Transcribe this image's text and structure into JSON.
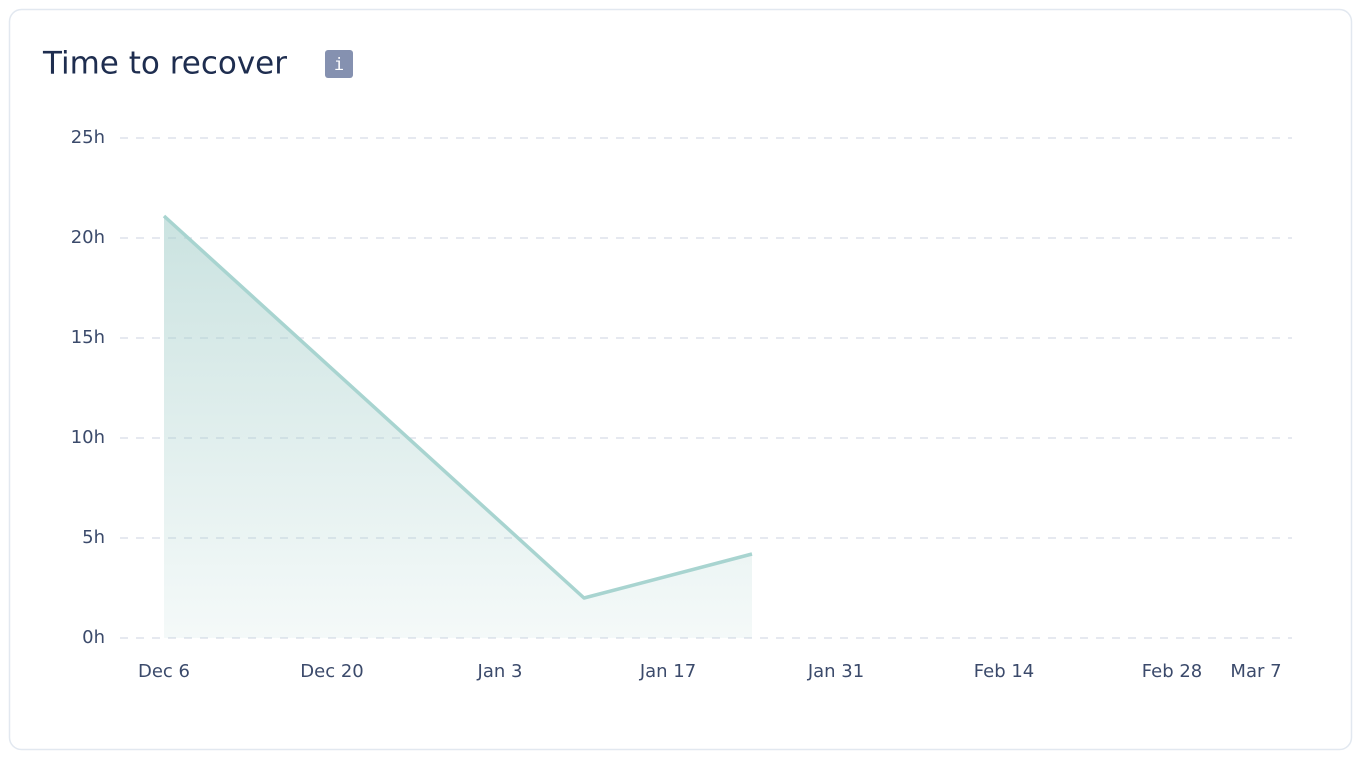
{
  "icon": "i",
  "chart_data": {
    "type": "area",
    "title": "Time to recover",
    "x": [
      "Dec 6",
      "Jan 10",
      "Jan 24"
    ],
    "values": [
      21.1,
      2,
      4.2
    ],
    "color": "#a8d4d0",
    "xlim": [
      "Dec 2",
      "Mar 10"
    ],
    "xticks": [
      "Dec 6",
      "Dec 20",
      "Jan 3",
      "Jan 17",
      "Jan 31",
      "Feb 14",
      "Feb 28",
      "Mar 7"
    ],
    "ylim": [
      0,
      25
    ],
    "yticks": [
      {
        "value": 0,
        "label": "0h"
      },
      {
        "value": 5,
        "label": "5h"
      },
      {
        "value": 10,
        "label": "10h"
      },
      {
        "value": 15,
        "label": "15h"
      },
      {
        "value": 20,
        "label": "20h"
      },
      {
        "value": 25,
        "label": "25h"
      }
    ],
    "grid": true
  }
}
